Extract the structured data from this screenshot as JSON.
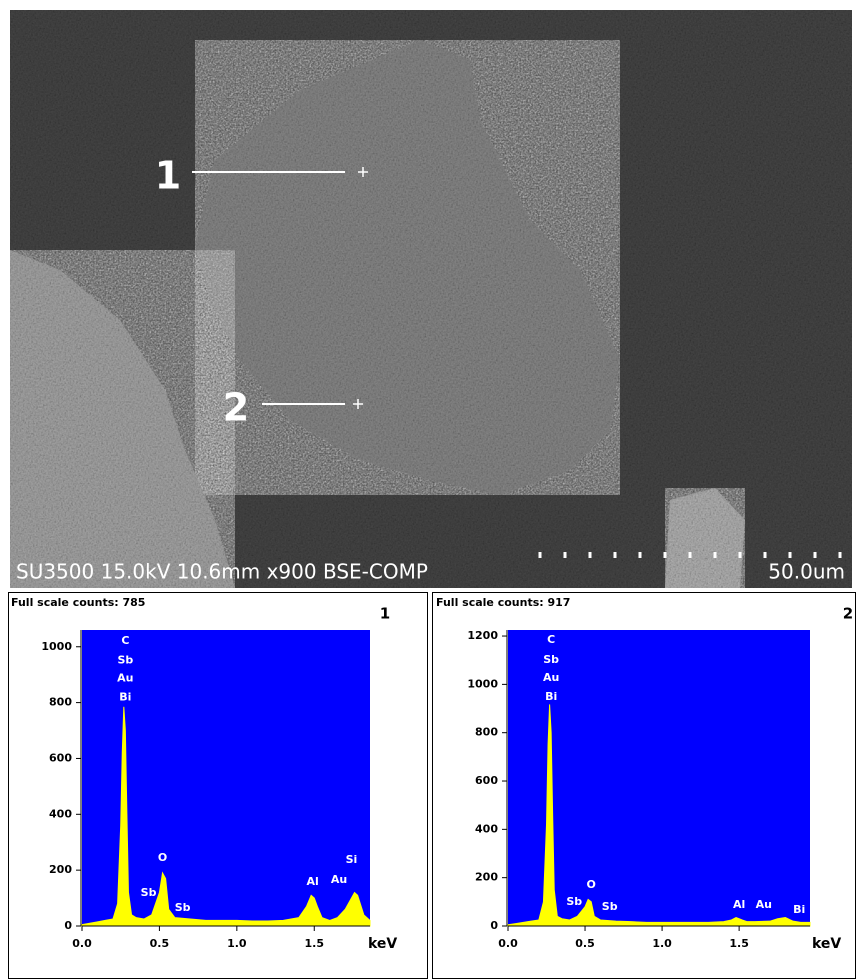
{
  "image": {
    "points": [
      "1",
      "2"
    ],
    "caption": "SU3500 15.0kV 10.6mm x900 BSE-COMP",
    "scale_bar": "50.0um"
  },
  "chart_data": [
    {
      "type": "area",
      "title": "Full scale counts: 785",
      "panel": "1",
      "x_label": "keV",
      "color": "#ffff00",
      "background": "#0000ff",
      "x": [
        0,
        0.05,
        0.1,
        0.15,
        0.2,
        0.23,
        0.25,
        0.26,
        0.27,
        0.28,
        0.29,
        0.3,
        0.32,
        0.35,
        0.4,
        0.45,
        0.5,
        0.52,
        0.54,
        0.56,
        0.6,
        0.7,
        0.8,
        0.9,
        1.0,
        1.1,
        1.2,
        1.3,
        1.4,
        1.45,
        1.48,
        1.5,
        1.52,
        1.55,
        1.6,
        1.65,
        1.7,
        1.74,
        1.76,
        1.78,
        1.82,
        1.86
      ],
      "values": [
        5,
        10,
        15,
        20,
        25,
        80,
        360,
        620,
        785,
        700,
        400,
        120,
        40,
        30,
        25,
        40,
        120,
        190,
        170,
        60,
        30,
        25,
        20,
        20,
        20,
        18,
        18,
        20,
        30,
        70,
        110,
        100,
        70,
        30,
        20,
        30,
        60,
        100,
        120,
        110,
        40,
        20
      ],
      "xlim": [
        0,
        1.86
      ],
      "ylim": [
        0,
        1060
      ],
      "xticks": [
        {
          "value": 0,
          "label": "0.0"
        },
        0.5,
        {
          "value": 1,
          "label": "1.0"
        },
        1.5
      ],
      "yticks": [
        0,
        200,
        400,
        600,
        800,
        1000
      ],
      "annotations": [
        {
          "text": "C",
          "x": 0.28,
          "y": 1021
        },
        {
          "text": "Sb",
          "x": 0.28,
          "y": 950
        },
        {
          "text": "Au",
          "x": 0.28,
          "y": 886
        },
        {
          "text": "Bi",
          "x": 0.28,
          "y": 818
        },
        {
          "text": "Sb",
          "x": 0.43,
          "y": 118
        },
        {
          "text": "O",
          "x": 0.52,
          "y": 243
        },
        {
          "text": "Sb",
          "x": 0.65,
          "y": 64
        },
        {
          "text": "Al",
          "x": 1.49,
          "y": 157
        },
        {
          "text": "Au",
          "x": 1.66,
          "y": 164
        },
        {
          "text": "Si",
          "x": 1.74,
          "y": 236
        }
      ]
    },
    {
      "type": "area",
      "title": "Full scale counts: 917",
      "panel": "2",
      "x_label": "keV",
      "color": "#ffff00",
      "background": "#0000ff",
      "x": [
        0,
        0.05,
        0.1,
        0.15,
        0.2,
        0.23,
        0.25,
        0.26,
        0.27,
        0.28,
        0.29,
        0.3,
        0.32,
        0.35,
        0.4,
        0.45,
        0.5,
        0.52,
        0.54,
        0.56,
        0.6,
        0.7,
        0.8,
        0.9,
        1.0,
        1.1,
        1.2,
        1.3,
        1.4,
        1.45,
        1.48,
        1.5,
        1.52,
        1.55,
        1.6,
        1.7,
        1.75,
        1.8,
        1.85,
        1.9,
        1.96
      ],
      "values": [
        5,
        10,
        15,
        20,
        25,
        100,
        420,
        750,
        917,
        800,
        450,
        150,
        40,
        30,
        25,
        40,
        80,
        110,
        100,
        40,
        25,
        20,
        18,
        15,
        15,
        15,
        15,
        15,
        18,
        25,
        35,
        30,
        25,
        18,
        18,
        20,
        30,
        35,
        20,
        15,
        15
      ],
      "xlim": [
        0,
        1.96
      ],
      "ylim": [
        0,
        1225
      ],
      "xticks": [
        {
          "value": 0,
          "label": "0.0"
        },
        0.5,
        {
          "value": 1,
          "label": "1.0"
        },
        1.5
      ],
      "yticks": [
        0,
        200,
        400,
        600,
        800,
        1000,
        1200
      ],
      "annotations": [
        {
          "text": "C",
          "x": 0.28,
          "y": 1183
        },
        {
          "text": "Sb",
          "x": 0.28,
          "y": 1100
        },
        {
          "text": "Au",
          "x": 0.28,
          "y": 1026
        },
        {
          "text": "Bi",
          "x": 0.28,
          "y": 947
        },
        {
          "text": "Sb",
          "x": 0.43,
          "y": 99
        },
        {
          "text": "O",
          "x": 0.54,
          "y": 170
        },
        {
          "text": "Sb",
          "x": 0.66,
          "y": 79
        },
        {
          "text": "Al",
          "x": 1.5,
          "y": 87
        },
        {
          "text": "Au",
          "x": 1.66,
          "y": 87
        },
        {
          "text": "Bi",
          "x": 1.89,
          "y": 66
        }
      ]
    }
  ]
}
